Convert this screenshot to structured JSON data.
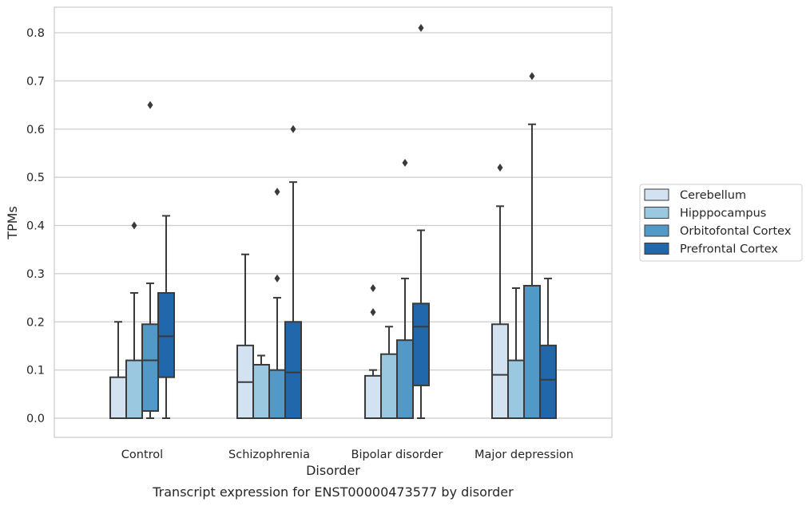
{
  "chart_data": {
    "type": "box",
    "title": "",
    "caption": "Transcript expression for ENST00000473577 by disorder",
    "xlabel": "Disorder",
    "ylabel": "TPMs",
    "ylim": [
      -0.04,
      0.853
    ],
    "yticks": [
      0.0,
      0.1,
      0.2,
      0.3,
      0.4,
      0.5,
      0.6,
      0.7,
      0.8
    ],
    "grid": "horizontal",
    "legend_position": "right",
    "categories": [
      "Control",
      "Schizophrenia",
      "Bipolar disorder",
      "Major depression"
    ],
    "series": [
      {
        "name": "Cerebellum",
        "color": "#d2e2f1",
        "boxes": [
          {
            "whislo": 0.0,
            "q1": 0.0,
            "med": 0.0,
            "q3": 0.085,
            "whishi": 0.2,
            "fliers": []
          },
          {
            "whislo": 0.0,
            "q1": 0.0,
            "med": 0.075,
            "q3": 0.151,
            "whishi": 0.34,
            "fliers": []
          },
          {
            "whislo": 0.0,
            "q1": 0.0,
            "med": 0.0,
            "q3": 0.088,
            "whishi": 0.1,
            "fliers": [
              0.22,
              0.27
            ]
          },
          {
            "whislo": 0.0,
            "q1": 0.0,
            "med": 0.09,
            "q3": 0.195,
            "whishi": 0.44,
            "fliers": [
              0.52
            ]
          }
        ]
      },
      {
        "name": "Hipppocampus",
        "color": "#9ac8e0",
        "boxes": [
          {
            "whislo": 0.0,
            "q1": 0.0,
            "med": 0.0,
            "q3": 0.12,
            "whishi": 0.26,
            "fliers": [
              0.4
            ]
          },
          {
            "whislo": 0.0,
            "q1": 0.0,
            "med": 0.0,
            "q3": 0.111,
            "whishi": 0.13,
            "fliers": []
          },
          {
            "whislo": 0.0,
            "q1": 0.0,
            "med": 0.0,
            "q3": 0.133,
            "whishi": 0.19,
            "fliers": []
          },
          {
            "whislo": 0.0,
            "q1": 0.0,
            "med": 0.0,
            "q3": 0.12,
            "whishi": 0.27,
            "fliers": []
          }
        ]
      },
      {
        "name": "Orbitofontal Cortex",
        "color": "#5299c8",
        "boxes": [
          {
            "whislo": 0.0,
            "q1": 0.015,
            "med": 0.12,
            "q3": 0.195,
            "whishi": 0.28,
            "fliers": [
              0.65
            ]
          },
          {
            "whislo": 0.0,
            "q1": 0.0,
            "med": 0.0,
            "q3": 0.1,
            "whishi": 0.25,
            "fliers": [
              0.29,
              0.47
            ]
          },
          {
            "whislo": 0.0,
            "q1": 0.0,
            "med": 0.0,
            "q3": 0.162,
            "whishi": 0.29,
            "fliers": [
              0.53
            ]
          },
          {
            "whislo": 0.0,
            "q1": 0.0,
            "med": 0.0,
            "q3": 0.275,
            "whishi": 0.61,
            "fliers": [
              0.71
            ]
          }
        ]
      },
      {
        "name": "Prefrontal Cortex",
        "color": "#2167ac",
        "boxes": [
          {
            "whislo": 0.0,
            "q1": 0.085,
            "med": 0.17,
            "q3": 0.26,
            "whishi": 0.42,
            "fliers": []
          },
          {
            "whislo": 0.0,
            "q1": 0.0,
            "med": 0.095,
            "q3": 0.2,
            "whishi": 0.49,
            "fliers": [
              0.6
            ]
          },
          {
            "whislo": 0.0,
            "q1": 0.068,
            "med": 0.19,
            "q3": 0.238,
            "whishi": 0.39,
            "fliers": [
              0.81
            ]
          },
          {
            "whislo": 0.0,
            "q1": 0.0,
            "med": 0.08,
            "q3": 0.151,
            "whishi": 0.29,
            "fliers": []
          }
        ]
      }
    ]
  }
}
